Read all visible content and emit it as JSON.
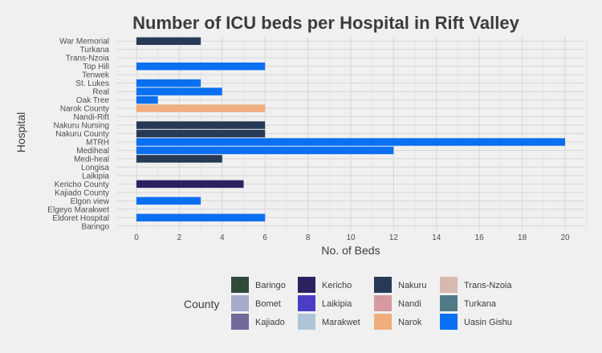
{
  "chart_data": {
    "type": "bar",
    "orientation": "horizontal",
    "title": "Number of ICU beds per Hospital in Rift Valley",
    "xlabel": "No. of Beds",
    "ylabel": "Hospital",
    "xlim": [
      -0.5,
      21
    ],
    "xticks": [
      0,
      2,
      4,
      6,
      8,
      10,
      12,
      14,
      16,
      18,
      20
    ],
    "grid": true,
    "categories": [
      "War Memorial",
      "Turkana",
      "Trans-Nzoia",
      "Top Hill",
      "Tenwek",
      "St. Lukes",
      "Real",
      "Oak Tree",
      "Narok County",
      "Nandi-Rift",
      "Nakuru Nursing",
      "Nakuru County",
      "MTRH",
      "Mediheal",
      "Medi-heal",
      "Longisa",
      "Laikipia",
      "Kericho County",
      "Kajiado County",
      "Elgon view",
      "Elgeyo Marakwet",
      "Eldoret Hospital",
      "Baringo"
    ],
    "values": [
      3,
      0,
      0,
      6,
      0,
      3,
      4,
      1,
      6,
      0,
      6,
      6,
      20,
      12,
      4,
      0,
      0,
      5,
      0,
      3,
      0,
      6,
      0
    ],
    "bar_county": [
      "Nakuru",
      "",
      "",
      "Uasin Gishu",
      "",
      "Uasin Gishu",
      "Uasin Gishu",
      "Uasin Gishu",
      "Narok",
      "",
      "Nakuru",
      "Nakuru",
      "Uasin Gishu",
      "Uasin Gishu",
      "Nakuru",
      "",
      "",
      "Kericho",
      "",
      "Uasin Gishu",
      "",
      "Uasin Gishu",
      ""
    ],
    "legend_title": "County",
    "legend_position": "bottom",
    "legend": [
      {
        "name": "Baringo",
        "color": "#2e4a3b"
      },
      {
        "name": "Bomet",
        "color": "#a9a9cc"
      },
      {
        "name": "Kajiado",
        "color": "#6e6a99"
      },
      {
        "name": "Kericho",
        "color": "#2c2060"
      },
      {
        "name": "Laikipia",
        "color": "#4b3ec4"
      },
      {
        "name": "Marakwet",
        "color": "#aec4d8"
      },
      {
        "name": "Nakuru",
        "color": "#273a55"
      },
      {
        "name": "Nandi",
        "color": "#d59aa0"
      },
      {
        "name": "Narok",
        "color": "#f0ad7e"
      },
      {
        "name": "Trans-Nzoia",
        "color": "#d7b9ad"
      },
      {
        "name": "Turkana",
        "color": "#4f7b86"
      },
      {
        "name": "Uasin Gishu",
        "color": "#0a6ff0"
      }
    ]
  }
}
